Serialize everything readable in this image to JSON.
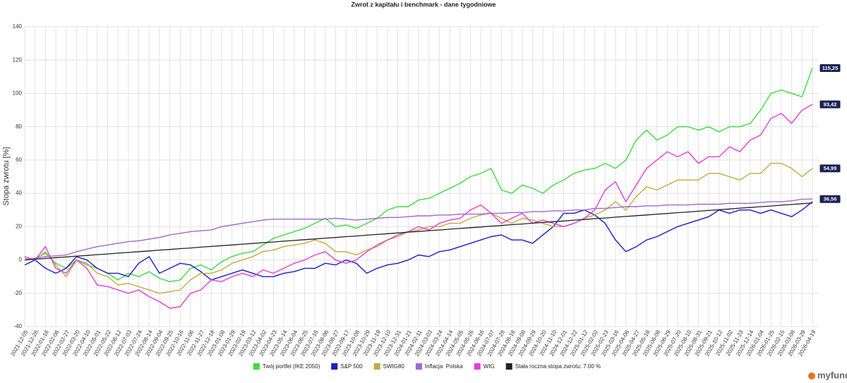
{
  "chart_data": {
    "type": "line",
    "title": "Zwrot z kapitału i benchmark - dane tygodniowe",
    "y_label": "Stopa zwrotu [%]",
    "logo": "myfund",
    "grid": true,
    "legend": "bottom",
    "ylim": [
      -40,
      140
    ],
    "yticks": [
      -40,
      -20,
      0,
      20,
      40,
      60,
      80,
      100,
      120,
      140
    ],
    "categories": [
      "2021-12-05",
      "2021-12-26",
      "2022-01-16",
      "2022-02-06",
      "2022-02-27",
      "2022-03-20",
      "2022-04-10",
      "2022-05-01",
      "2022-05-22",
      "2022-06-12",
      "2022-07-03",
      "2022-07-24",
      "2022-08-14",
      "2022-09-04",
      "2022-09-25",
      "2022-10-16",
      "2022-11-06",
      "2022-11-27",
      "2022-12-18",
      "2023-01-08",
      "2023-01-29",
      "2023-02-19",
      "2023-03-12",
      "2023-04-02",
      "2023-04-23",
      "2023-05-14",
      "2023-06-04",
      "2023-06-25",
      "2023-07-16",
      "2023-08-06",
      "2023-08-27",
      "2023-09-17",
      "2023-10-08",
      "2023-10-29",
      "2023-11-19",
      "2023-12-10",
      "2023-12-31",
      "2024-01-21",
      "2024-02-11",
      "2024-03-03",
      "2024-03-24",
      "2024-04-14",
      "2024-05-05",
      "2024-05-26",
      "2024-06-16",
      "2024-07-07",
      "2024-07-28",
      "2024-08-18",
      "2024-09-08",
      "2024-09-29",
      "2024-10-20",
      "2024-11-10",
      "2024-12-01",
      "2024-12-22",
      "2025-01-12",
      "2025-02-02",
      "2025-02-23",
      "2025-03-16",
      "2025-04-06",
      "2025-04-27",
      "2025-05-18",
      "2025-06-08",
      "2025-06-29",
      "2025-07-20",
      "2025-08-10",
      "2025-08-31",
      "2025-09-21",
      "2025-10-12",
      "2025-11-02",
      "2025-11-23",
      "2025-12-14",
      "2026-01-04",
      "2026-01-25",
      "2026-02-15",
      "2026-03-08",
      "2026-03-29",
      "2026-04-19"
    ],
    "series": [
      {
        "name": "Twój portfel (IKE 2050)",
        "color": "#3ddc3d",
        "values": [
          0,
          1,
          4,
          -2,
          -5,
          0,
          -3,
          -5,
          -8,
          -12,
          -8,
          -10,
          -7,
          -11,
          -13,
          -12,
          -5,
          -3,
          -6,
          -1,
          2,
          4,
          5,
          9,
          13,
          15,
          17,
          19,
          22,
          25,
          20,
          21,
          19,
          22,
          25,
          30,
          32,
          32,
          36,
          37,
          40,
          43,
          46,
          50,
          52,
          55,
          42,
          40,
          45,
          43,
          40,
          45,
          48,
          52,
          54,
          55,
          58,
          55,
          60,
          72,
          78,
          72,
          75,
          80,
          80,
          78,
          80,
          77,
          80,
          80,
          82,
          90,
          100,
          102,
          100,
          98,
          115.25
        ],
        "value_labels": [
          null,
          null,
          null,
          null,
          null,
          null,
          null,
          null,
          null,
          null,
          null,
          null,
          null,
          null,
          null,
          null,
          null,
          null,
          null,
          null,
          null,
          null,
          null,
          null,
          null,
          null,
          null,
          null,
          null,
          null,
          null,
          null,
          null,
          null,
          null,
          null,
          null,
          null,
          null,
          null,
          null,
          null,
          null,
          null,
          null,
          null,
          null,
          null,
          null,
          null,
          null,
          null,
          null,
          null,
          null,
          null,
          null,
          null,
          null,
          null,
          null,
          null,
          null,
          null,
          null,
          null,
          null,
          null,
          null,
          null,
          null,
          null,
          null,
          null,
          null,
          null,
          "115,25"
        ]
      },
      {
        "name": "S&P 500",
        "color": "#1c1ccc",
        "values": [
          -3,
          0,
          -5,
          -8,
          -5,
          2,
          0,
          -5,
          -8,
          -8,
          -10,
          -2,
          2,
          -8,
          -5,
          -2,
          -3,
          -7,
          -12,
          -10,
          -8,
          -6,
          -8,
          -10,
          -10,
          -8,
          -7,
          -5,
          -5,
          -2,
          -3,
          0,
          -2,
          -8,
          -5,
          -3,
          -2,
          0,
          3,
          2,
          5,
          6,
          8,
          10,
          12,
          14,
          15,
          12,
          12,
          10,
          15,
          20,
          28,
          28,
          30,
          27,
          22,
          12,
          5,
          8,
          12,
          14,
          17,
          20,
          22,
          24,
          26,
          30,
          28,
          30,
          30,
          28,
          30,
          28,
          26,
          30,
          35
        ]
      },
      {
        "name": "SWIG80",
        "color": "#c2ab42",
        "values": [
          1,
          0,
          5,
          -3,
          -10,
          0,
          -2,
          -8,
          -10,
          -15,
          -14,
          -16,
          -18,
          -20,
          -19,
          -18,
          -12,
          -8,
          -8,
          -6,
          -2,
          0,
          2,
          5,
          6,
          8,
          9,
          10,
          12,
          10,
          5,
          5,
          3,
          6,
          8,
          12,
          14,
          17,
          18,
          20,
          20,
          22,
          22,
          25,
          27,
          28,
          25,
          22,
          25,
          24,
          22,
          20,
          20,
          22,
          25,
          27,
          30,
          35,
          30,
          38,
          44,
          42,
          45,
          48,
          48,
          48,
          52,
          52,
          50,
          48,
          52,
          52,
          58,
          58,
          55,
          50,
          54.99
        ],
        "value_labels": [
          null,
          null,
          null,
          null,
          null,
          null,
          null,
          null,
          null,
          null,
          null,
          null,
          null,
          null,
          null,
          null,
          null,
          null,
          null,
          null,
          null,
          null,
          null,
          null,
          null,
          null,
          null,
          null,
          null,
          null,
          null,
          null,
          null,
          null,
          null,
          null,
          null,
          null,
          null,
          null,
          null,
          null,
          null,
          null,
          null,
          null,
          null,
          null,
          null,
          null,
          null,
          null,
          null,
          null,
          null,
          null,
          null,
          null,
          null,
          null,
          null,
          null,
          null,
          null,
          null,
          null,
          null,
          null,
          null,
          null,
          null,
          null,
          null,
          null,
          null,
          null,
          "54,99"
        ]
      },
      {
        "name": "Inflacja  Polska",
        "color": "#a468cf",
        "values": [
          0,
          1,
          2,
          2.5,
          3,
          5,
          6.5,
          8,
          9,
          10,
          11,
          11.5,
          12.5,
          13.5,
          15,
          16,
          17,
          17.5,
          18,
          20,
          21,
          22,
          23,
          24,
          24.5,
          24.5,
          24.5,
          24.5,
          24.5,
          24.5,
          25,
          24.5,
          24,
          24.5,
          25,
          25.5,
          25.5,
          26,
          26.5,
          26.5,
          27,
          27,
          27.5,
          27.5,
          27.5,
          28,
          28,
          28.5,
          28.5,
          29,
          29,
          29.5,
          29.5,
          30,
          30,
          31,
          31,
          31.5,
          32,
          32,
          32.5,
          32.5,
          33,
          33,
          33,
          33.5,
          33.5,
          33.5,
          34,
          34,
          34,
          34.5,
          35,
          35,
          35.5,
          36.5,
          36.56
        ],
        "value_labels": [
          null,
          null,
          null,
          null,
          null,
          null,
          null,
          null,
          null,
          null,
          null,
          null,
          null,
          null,
          null,
          null,
          null,
          null,
          null,
          null,
          null,
          null,
          null,
          null,
          null,
          null,
          null,
          null,
          null,
          null,
          null,
          null,
          null,
          null,
          null,
          null,
          null,
          null,
          null,
          null,
          null,
          null,
          null,
          null,
          null,
          null,
          null,
          null,
          null,
          null,
          null,
          null,
          null,
          null,
          null,
          null,
          null,
          null,
          null,
          null,
          null,
          null,
          null,
          null,
          null,
          null,
          null,
          null,
          null,
          null,
          null,
          null,
          null,
          null,
          null,
          null,
          "36,56"
        ]
      },
      {
        "name": "WIG",
        "color": "#e43fd6",
        "values": [
          2,
          0,
          8,
          -5,
          -8,
          0,
          -5,
          -15,
          -16,
          -18,
          -20,
          -18,
          -22,
          -25,
          -29,
          -28,
          -20,
          -18,
          -12,
          -13,
          -10,
          -8,
          -10,
          -6,
          -8,
          -5,
          -2,
          0,
          3,
          5,
          0,
          -2,
          0,
          5,
          9,
          12,
          15,
          17,
          20,
          18,
          22,
          24,
          25,
          30,
          33,
          28,
          22,
          25,
          28,
          22,
          24,
          22,
          20,
          22,
          25,
          30,
          42,
          47,
          35,
          45,
          55,
          60,
          65,
          62,
          65,
          58,
          62,
          62,
          68,
          65,
          72,
          75,
          85,
          88,
          82,
          90,
          93.42
        ],
        "value_labels": [
          null,
          null,
          null,
          null,
          null,
          null,
          null,
          null,
          null,
          null,
          null,
          null,
          null,
          null,
          null,
          null,
          null,
          null,
          null,
          null,
          null,
          null,
          null,
          null,
          null,
          null,
          null,
          null,
          null,
          null,
          null,
          null,
          null,
          null,
          null,
          null,
          null,
          null,
          null,
          null,
          null,
          null,
          null,
          null,
          null,
          null,
          null,
          null,
          null,
          null,
          null,
          null,
          null,
          null,
          null,
          null,
          null,
          null,
          null,
          null,
          null,
          null,
          null,
          null,
          null,
          null,
          null,
          null,
          null,
          null,
          null,
          null,
          null,
          null,
          null,
          null,
          "93,42"
        ]
      },
      {
        "name": "Stała roczna stopa zwrotu: 7.00 %",
        "color": "#222222",
        "values": [
          0,
          0.5,
          0.9,
          1.4,
          1.8,
          2.3,
          2.7,
          3.2,
          3.6,
          4.1,
          4.5,
          5,
          5.4,
          5.9,
          6.3,
          6.8,
          7.2,
          7.7,
          8.1,
          8.6,
          9,
          9.5,
          9.9,
          10.4,
          10.8,
          11.3,
          11.7,
          12.2,
          12.6,
          13.1,
          13.5,
          14,
          14.4,
          14.9,
          15.3,
          15.8,
          16.2,
          16.7,
          17.1,
          17.6,
          18,
          18.5,
          18.9,
          19.4,
          19.8,
          20.3,
          20.7,
          21.2,
          21.6,
          22.1,
          22.5,
          23,
          23.4,
          23.9,
          24.3,
          24.8,
          25.2,
          25.7,
          26.1,
          26.6,
          27,
          27.5,
          27.9,
          28.4,
          28.8,
          29.3,
          29.7,
          30.2,
          30.6,
          31.1,
          31.5,
          32,
          32.4,
          32.9,
          33.3,
          33.8,
          34.2
        ]
      }
    ]
  }
}
